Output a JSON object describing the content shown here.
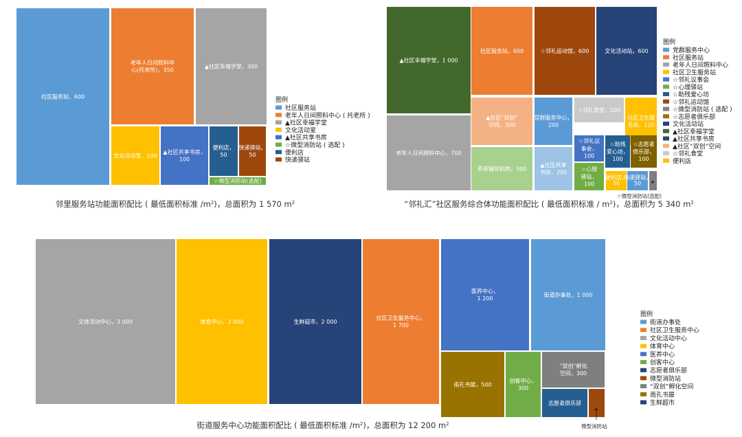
{
  "chart_data": [
    {
      "type": "treemap",
      "title": "邻里服务站功能面积配比 ( 最低面积标准 /m²)，总面积为 1 570 m²",
      "legend_title": "图例",
      "legend_items": [
        "社区服务站",
        "老年人日间照料中心 ( 托老所 )",
        "▲社区幸福学堂",
        "文化活动室",
        "▲社区共享书房",
        "☆微型消防站 ( 选配 )",
        "便利店",
        "快递驿站"
      ],
      "items": [
        {
          "name": "社区服务站",
          "value": 600,
          "label_lines": [
            "社区服务站，600"
          ],
          "color": "#5b9bd5"
        },
        {
          "name": "老年人日间照料中心(托老所)",
          "value": 350,
          "label_lines": [
            "老年人日间照料中",
            "心(托老所)，350"
          ],
          "color": "#ed7d31"
        },
        {
          "name": "▲社区幸福学堂",
          "value": 300,
          "label_lines": [
            "▲社区幸福学堂，300"
          ],
          "color": "#a5a5a5"
        },
        {
          "name": "文化活动室",
          "value": 100,
          "label_lines": [
            "文化活动室，100"
          ],
          "color": "#ffc000"
        },
        {
          "name": "▲社区共享书房",
          "value": 100,
          "label_lines": [
            "▲社区共享书房，",
            "100"
          ],
          "color": "#4472c4"
        },
        {
          "name": "便利店",
          "value": 50,
          "label_lines": [
            "便利店，",
            "50"
          ],
          "color": "#255e91"
        },
        {
          "name": "快递驿站",
          "value": 50,
          "label_lines": [
            "快递驿站，",
            "50"
          ],
          "color": "#9e480e"
        },
        {
          "name": "☆微型消防站(选配)",
          "value": null,
          "label_lines": [
            "☆微型消防站(选配)"
          ],
          "color": "#70ad47"
        }
      ]
    },
    {
      "type": "treemap",
      "title": "“邻礼汇”社区服务综合体功能面积配比 ( 最低面积标准 / m²)，总面积为 5 340 m²",
      "legend_title": "图例",
      "legend_items": [
        "党群服务中心",
        "社区服务站",
        "老年人日间照料中心",
        "社区卫生服务站",
        "☆邻礼议事会",
        "☆心理驿站",
        "☆助残爱心坊",
        "☆邻礼运动馆",
        "☆微型消防站 ( 选配 )",
        "☆志愿者俱乐部",
        "文化活动站",
        "▲社区幸福学堂",
        "▲社区共享书房",
        "▲社区“双创”空间",
        "☆邻礼食堂",
        "便利店"
      ],
      "items": [
        {
          "name": "▲社区幸福学堂",
          "value": 1000,
          "label_lines": [
            "▲社区幸福学堂，1 000"
          ],
          "color": "#43682b"
        },
        {
          "name": "老年人日间照料中心",
          "value": 700,
          "label_lines": [
            "老年人日间照料中心，700"
          ],
          "color": "#a5a5a5"
        },
        {
          "name": "社区服务站",
          "value": 600,
          "label_lines": [
            "社区服务站，600"
          ],
          "color": "#ed7d31"
        },
        {
          "name": "☆邻礼运动馆",
          "value": 600,
          "label_lines": [
            "☆邻礼运动馆，600"
          ],
          "color": "#9e480e"
        },
        {
          "name": "文化活动站",
          "value": 600,
          "label_lines": [
            "文化活动站，600"
          ],
          "color": "#264478"
        },
        {
          "name": "▲社区“双创”空间",
          "value": 300,
          "label_lines": [
            "▲社区“双创”",
            "空间，300"
          ],
          "color": "#f4b183"
        },
        {
          "name": "党群服务中心",
          "value": 200,
          "label_lines": [
            "党群服务中心，",
            "200"
          ],
          "color": "#5b9bd5"
        },
        {
          "name": "☆邻礼食堂",
          "value": 200,
          "label_lines": [
            "☆邻礼食堂，200"
          ],
          "color": "#c9c9c9"
        },
        {
          "name": "社区卫生服务站",
          "value": 120,
          "label_lines": [
            "社区卫生服",
            "务站，120"
          ],
          "color": "#ffc000"
        },
        {
          "name": "养育辅导机构",
          "value": 300,
          "label_lines": [
            "养育辅导机构，300"
          ],
          "color": "#a9d18e"
        },
        {
          "name": "▲社区共享书房",
          "value": 200,
          "label_lines": [
            "▲社区共享",
            "书房，200"
          ],
          "color": "#9dc3e6"
        },
        {
          "name": "☆邻礼议事会",
          "value": 100,
          "label_lines": [
            "☆邻礼议",
            "事会，",
            "100"
          ],
          "color": "#4472c4"
        },
        {
          "name": "☆助残爱心坊",
          "value": 100,
          "label_lines": [
            "☆助残",
            "爱心坊，",
            "100"
          ],
          "color": "#255e91"
        },
        {
          "name": "☆志愿者俱乐部",
          "value": 100,
          "label_lines": [
            "☆志愿者",
            "俱乐部，",
            "100"
          ],
          "color": "#7f6000"
        },
        {
          "name": "☆心理驿站",
          "value": 100,
          "label_lines": [
            "☆心理",
            "驿站，",
            "100"
          ],
          "color": "#70ad47"
        },
        {
          "name": "便利店",
          "value": 50,
          "label_lines": [
            "便利店，",
            "50"
          ],
          "color": "#ffc000"
        },
        {
          "name": "快递驿站",
          "value": 50,
          "label_lines": [
            "快递驿站，",
            "50"
          ],
          "color": "#5b9bd5"
        },
        {
          "name": "☆微型消防站(选配)",
          "value": null,
          "label_lines": [
            "☆微型消防站(选配)"
          ],
          "color": "#7f7f7f"
        }
      ]
    },
    {
      "type": "treemap",
      "title": "街道服务中心功能面积配比 ( 最低面积标准 /m²)，总面积为 12 200 m²",
      "legend_title": "图例",
      "legend_items": [
        "街道办事处",
        "社区卫生服务中心",
        "文化活动中心",
        "体育中心",
        "医养中心",
        "创客中心",
        "志愿者俱乐部",
        "微型消防站",
        "“双创”孵化空间",
        "南孔书屋",
        "生鲜超市"
      ],
      "items": [
        {
          "name": "文体活动中心",
          "value": 3000,
          "label_lines": [
            "文体活动中心，3 000"
          ],
          "color": "#a5a5a5"
        },
        {
          "name": "体育中心",
          "value": 2000,
          "label_lines": [
            "体育中心，2 000"
          ],
          "color": "#ffc000"
        },
        {
          "name": "生鲜超市",
          "value": 2000,
          "label_lines": [
            "生鲜超市，2 000"
          ],
          "color": "#264478"
        },
        {
          "name": "社区卫生服务中心",
          "value": 1700,
          "label_lines": [
            "社区卫生服务中心，",
            "1 700"
          ],
          "color": "#ed7d31"
        },
        {
          "name": "医养中心",
          "value": 1200,
          "label_lines": [
            "医养中心，",
            "1 200"
          ],
          "color": "#4472c4"
        },
        {
          "name": "街道办事处",
          "value": 1000,
          "label_lines": [
            "街道办事处，1 000"
          ],
          "color": "#5b9bd5"
        },
        {
          "name": "南孔书屋",
          "value": 500,
          "label_lines": [
            "南孔书屋，500"
          ],
          "color": "#997300"
        },
        {
          "name": "创客中心",
          "value": 300,
          "label_lines": [
            "创客中心，",
            "300"
          ],
          "color": "#70ad47"
        },
        {
          "name": "“双创”孵化空间",
          "value": 300,
          "label_lines": [
            "“双创”孵化",
            "空间，300"
          ],
          "color": "#7f7f7f"
        },
        {
          "name": "志愿者俱乐部",
          "value": null,
          "label_lines": [
            "志愿者俱乐部"
          ],
          "color": "#255e91"
        },
        {
          "name": "微型消防站",
          "value": null,
          "label_lines": [
            "微型消防站"
          ],
          "color": "#9e480e"
        }
      ]
    }
  ]
}
